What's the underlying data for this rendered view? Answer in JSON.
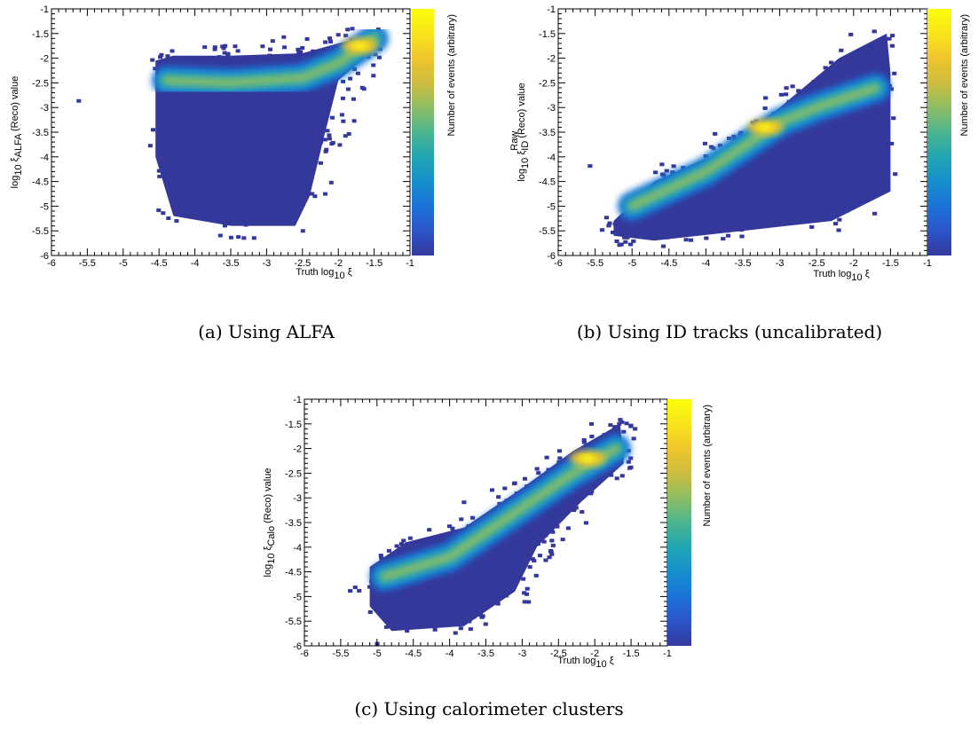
{
  "figure": {
    "captions": [
      "(a) Using ALFA",
      "(b) Using ID tracks (uncalibrated)",
      "(c) Using calorimeter clusters"
    ]
  },
  "colorbar": {
    "label": "Number of events (arbitrary)",
    "palette": [
      "#35389b",
      "#2b55c9",
      "#1a72d6",
      "#1690cf",
      "#22a6b4",
      "#4cb58f",
      "#8dbd64",
      "#cdbc3e",
      "#f0c52c",
      "#f9e51c",
      "#fbff0a"
    ]
  },
  "chart_data": [
    {
      "type": "heatmap",
      "id": "a",
      "xlabel": "Truth log",
      "xlabel_sub": "10",
      "xlabel_tail": " ξ",
      "ylabel_pre": "log",
      "ylabel_sub1": "10",
      "ylabel_sym": " ξ",
      "ylabel_sub2": "ALFA",
      "ylabel_sup": "",
      "ylabel_post": " (Reco) value",
      "xlim": [
        -6,
        -1
      ],
      "ylim": [
        -6,
        -1
      ],
      "xticks": [
        "-6",
        "-5.5",
        "-5",
        "-4.5",
        "-4",
        "-3.5",
        "-3",
        "-2.5",
        "-2",
        "-1.5",
        "-1"
      ],
      "yticks": [
        "-6",
        "-5.5",
        "-5",
        "-4.5",
        "-4",
        "-3.5",
        "-3",
        "-2.5",
        "-2",
        "-1.5",
        "-1"
      ],
      "x_range_populated": [
        -4.6,
        -1.45
      ],
      "outlier_point": [
        -5.65,
        -2.83
      ],
      "ridge": [
        [
          -4.4,
          -2.45
        ],
        [
          -3.5,
          -2.5
        ],
        [
          -2.5,
          -2.4
        ],
        [
          -2.0,
          -2.1
        ],
        [
          -1.5,
          -1.6
        ]
      ],
      "peak": [
        -1.7,
        -1.75
      ]
    },
    {
      "type": "heatmap",
      "id": "b",
      "xlabel": "Truth log",
      "xlabel_sub": "10",
      "xlabel_tail": " ξ",
      "ylabel_pre": "log",
      "ylabel_sub1": "10",
      "ylabel_sym": " ξ",
      "ylabel_sub2": "ID",
      "ylabel_sup": "Raw",
      "ylabel_post": " (Reco) value",
      "xlim": [
        -6,
        -1
      ],
      "ylim": [
        -6,
        -1
      ],
      "xticks": [
        "-6",
        "-5.5",
        "-5",
        "-4.5",
        "-4",
        "-3.5",
        "-3",
        "-2.5",
        "-2",
        "-1.5",
        "-1"
      ],
      "yticks": [
        "-6",
        "-5.5",
        "-5",
        "-4.5",
        "-4",
        "-3.5",
        "-3",
        "-2.5",
        "-2",
        "-1.5",
        "-1"
      ],
      "x_range_populated": [
        -5.3,
        -1.5
      ],
      "outlier_point": [
        -5.6,
        -4.15
      ],
      "ridge": [
        [
          -5.0,
          -5.0
        ],
        [
          -4.0,
          -4.3
        ],
        [
          -3.0,
          -3.3
        ],
        [
          -2.5,
          -3.0
        ],
        [
          -1.7,
          -2.6
        ]
      ],
      "peak": [
        -3.2,
        -3.4
      ]
    },
    {
      "type": "heatmap",
      "id": "c",
      "xlabel": "Truth log",
      "xlabel_sub": "10",
      "xlabel_tail": " ξ",
      "ylabel_pre": "log",
      "ylabel_sub1": "10",
      "ylabel_sym": " ξ",
      "ylabel_sub2": "Calo",
      "ylabel_sup": "",
      "ylabel_post": " (Reco) value",
      "xlim": [
        -6,
        -1
      ],
      "ylim": [
        -6,
        -1
      ],
      "xticks": [
        "-6",
        "-5.5",
        "-5",
        "-4.5",
        "-4",
        "-3.5",
        "-3",
        "-2.5",
        "-2",
        "-1.5",
        "-1"
      ],
      "yticks": [
        "-6",
        "-5.5",
        "-5",
        "-4.5",
        "-4",
        "-3.5",
        "-3",
        "-2.5",
        "-2",
        "-1.5",
        "-1"
      ],
      "x_range_populated": [
        -5.2,
        -1.5
      ],
      "outlier_point": [
        -5.4,
        -4.85
      ],
      "ridge": [
        [
          -4.9,
          -4.6
        ],
        [
          -4.0,
          -4.2
        ],
        [
          -3.0,
          -3.2
        ],
        [
          -2.3,
          -2.5
        ],
        [
          -1.7,
          -2.0
        ]
      ],
      "peak": [
        -2.1,
        -2.2
      ]
    }
  ]
}
